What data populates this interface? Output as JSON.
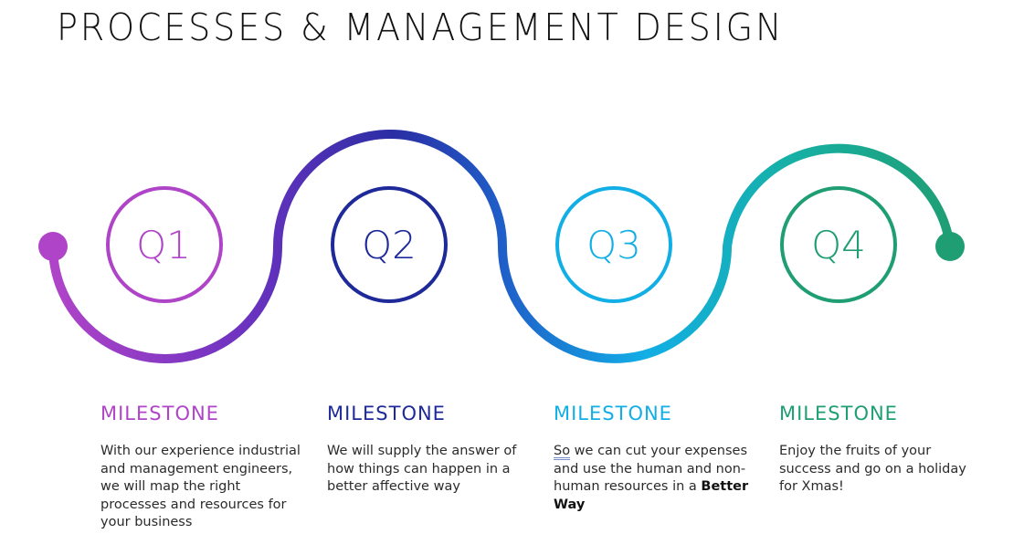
{
  "title": "PROCESSES & MANAGEMENT DESIGN",
  "stages": [
    {
      "label": "Q1",
      "color": "#b044c8",
      "milestone": "MILESTONE",
      "description": "With our experience industrial and management engineers, we will map the right processes and resources for your business"
    },
    {
      "label": "Q2",
      "color": "#1f2a9a",
      "milestone": "MILESTONE",
      "description": "We will supply the answer of how things can happen in a better affective way"
    },
    {
      "label": "Q3",
      "color": "#12aee6",
      "milestone": "MILESTONE",
      "description_prefix": "So",
      "description_main": " we can cut your expenses and use the human and non-human resources in a ",
      "description_bold": "Better Way"
    },
    {
      "label": "Q4",
      "color": "#1f9e74",
      "milestone": "MILESTONE",
      "description": "Enjoy the fruits of your success and go on a holiday for Xmas!"
    }
  ],
  "colors": {
    "start_dot": "#b044c8",
    "end_dot": "#1f9e74",
    "gradient": [
      "#b044c8",
      "#6a32c0",
      "#2a2ea4",
      "#1f5ec8",
      "#12aee6",
      "#16b0a6",
      "#1f9e74"
    ]
  }
}
